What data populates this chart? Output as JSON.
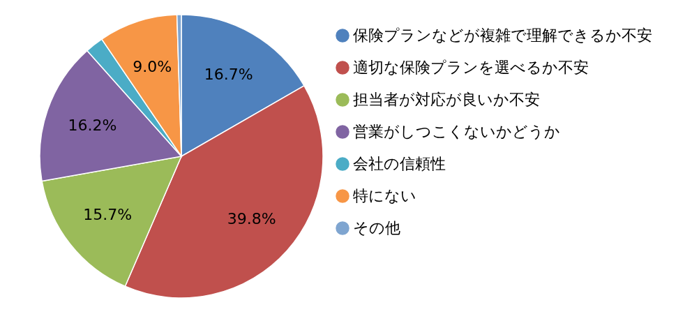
{
  "chart_data": {
    "type": "pie",
    "categories": [
      "保険プランなどが複雑で理解できるか不安",
      "適切な保険プランを選べるか不安",
      "担当者が対応が良いか不安",
      "営業がしつこくないかどうか",
      "会社の信頼性",
      "特にない",
      "その他"
    ],
    "values": [
      16.7,
      39.8,
      15.7,
      16.2,
      2.1,
      9.0,
      0.5
    ],
    "value_labels": [
      "16.7%",
      "39.8%",
      "15.7%",
      "16.2%",
      null,
      "9.0%",
      null
    ],
    "colors": [
      "#4f81bd",
      "#c0504d",
      "#9bbb59",
      "#8064a2",
      "#4bacc6",
      "#f79646",
      "#7fa5d0"
    ],
    "legend": "right"
  }
}
